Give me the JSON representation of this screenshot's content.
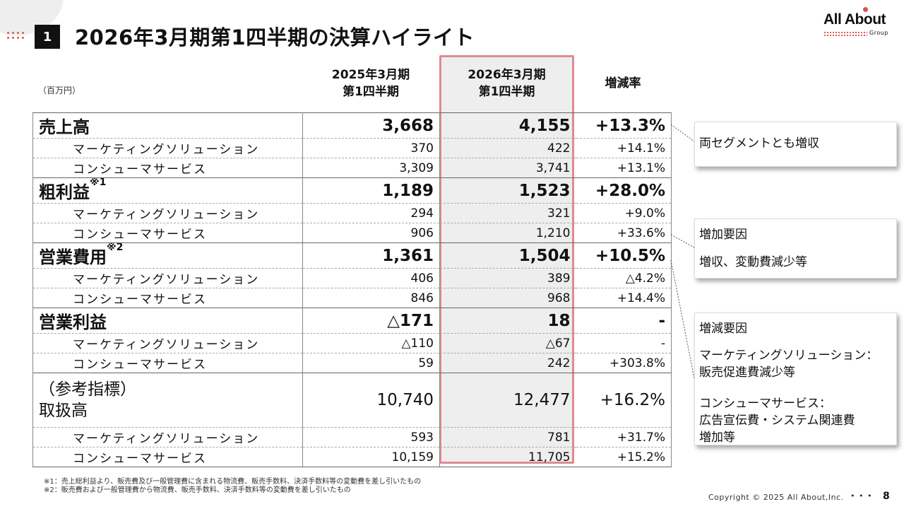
{
  "header": {
    "section_number": "1",
    "title": "2026年3月期第1四半期の決算ハイライト",
    "logo_text_a": "All Ab",
    "logo_text_o": "o",
    "logo_text_b": "ut",
    "logo_sub": "Group"
  },
  "table": {
    "unit": "（百万円）",
    "col1_line1": "2025年3月期",
    "col1_line2": "第1四半期",
    "col2_line1": "2026年3月期",
    "col2_line2": "第1四半期",
    "col3": "増減率",
    "rows": [
      {
        "label": "売上高",
        "sup": "",
        "prev": "3,668",
        "curr": "4,155",
        "rate": "+13.3%"
      },
      {
        "label": "マーケティングソリューション",
        "prev": "370",
        "curr": "422",
        "rate": "+14.1%"
      },
      {
        "label": "コンシューマサービス",
        "prev": "3,309",
        "curr": "3,741",
        "rate": "+13.1%"
      },
      {
        "label": "粗利益",
        "sup": "※1",
        "prev": "1,189",
        "curr": "1,523",
        "rate": "+28.0%"
      },
      {
        "label": "マーケティングソリューション",
        "prev": "294",
        "curr": "321",
        "rate": "+9.0%"
      },
      {
        "label": "コンシューマサービス",
        "prev": "906",
        "curr": "1,210",
        "rate": "+33.6%"
      },
      {
        "label": "営業費用",
        "sup": "※2",
        "prev": "1,361",
        "curr": "1,504",
        "rate": "+10.5%"
      },
      {
        "label": "マーケティングソリューション",
        "prev": "406",
        "curr": "389",
        "rate": "△4.2%"
      },
      {
        "label": "コンシューマサービス",
        "prev": "846",
        "curr": "968",
        "rate": "+14.4%"
      },
      {
        "label": "営業利益",
        "sup": "",
        "prev": "△171",
        "curr": "18",
        "rate": "-"
      },
      {
        "label": "マーケティングソリューション",
        "prev": "△110",
        "curr": "△67",
        "rate": "-"
      },
      {
        "label": "コンシューマサービス",
        "prev": "59",
        "curr": "242",
        "rate": "+303.8%"
      },
      {
        "label_line1": "（参考指標）",
        "label_line2": "取扱高",
        "prev": "10,740",
        "curr": "12,477",
        "rate": "+16.2%"
      },
      {
        "label": "マーケティングソリューション",
        "prev": "593",
        "curr": "781",
        "rate": "+31.7%"
      },
      {
        "label": "コンシューマサービス",
        "prev": "10,159",
        "curr": "11,705",
        "rate": "+15.2%"
      }
    ]
  },
  "callouts": {
    "c1": "両セグメントとも増収",
    "c2_title": "増加要因",
    "c2_body": "増収、変動費減少等",
    "c3_title": "増減要因",
    "c3_line1": "マーケティングソリューション：",
    "c3_line2": "販売促進費減少等",
    "c3_line3": "コンシューマサービス：",
    "c3_line4": "広告宣伝費・システム関連費",
    "c3_line5": "増加等"
  },
  "footer": {
    "note1": "※1：売上総利益より、販売費及び一般管理費に含まれる物流費、販売手数料、決済手数料等の変動費を差し引いたもの",
    "note2": "※2：販売費および一般管理費から物流費、販売手数料、決済手数料等の変動費を差し引いたもの",
    "copyright": "Copyright © 2025 All About,Inc.",
    "dots": "• • •",
    "page": "8"
  },
  "colors": {
    "accent": "#d9534f",
    "highlight_border": "#e08a92",
    "highlight_fill": "#eeeeee"
  }
}
